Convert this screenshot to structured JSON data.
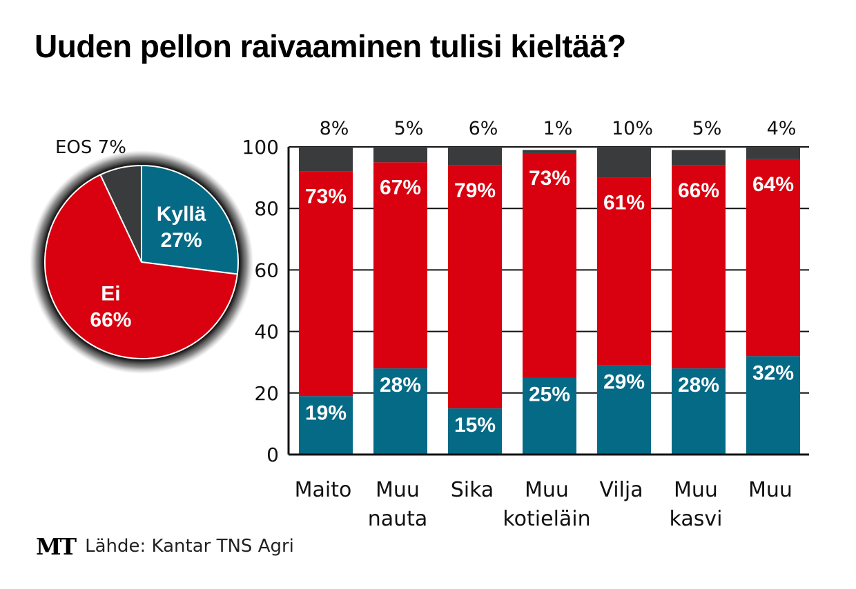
{
  "title": "Uuden pellon raivaaminen tulisi kieltää?",
  "colors": {
    "kylla": "#056a86",
    "ei": "#d9000f",
    "eos": "#3a3b3d",
    "axis": "#111111",
    "bar_label": "#ffffff"
  },
  "source": {
    "logo": "MT",
    "text": "Lähde: Kantar TNS Agri"
  },
  "chart_data": [
    {
      "type": "pie",
      "slices": [
        {
          "label": "Kyllä",
          "value": 27,
          "value_label": "27%",
          "color": "#056a86"
        },
        {
          "label": "Ei",
          "value": 66,
          "value_label": "66%",
          "color": "#d9000f"
        },
        {
          "label": "EOS",
          "value": 7,
          "value_label": "7%",
          "color": "#3a3b3d"
        }
      ],
      "outside_label": "EOS 7%"
    },
    {
      "type": "bar",
      "stacked": true,
      "categories": [
        [
          "Maito"
        ],
        [
          "Muu",
          "nauta"
        ],
        [
          "Sika"
        ],
        [
          "Muu",
          "kotieläin"
        ],
        [
          "Vilja"
        ],
        [
          "Muu",
          "kasvi"
        ],
        [
          "Muu"
        ]
      ],
      "series": [
        {
          "key": "kylla",
          "values": [
            19,
            28,
            15,
            25,
            29,
            28,
            32
          ],
          "labels": [
            "19%",
            "28%",
            "15%",
            "25%",
            "29%",
            "28%",
            "32%"
          ],
          "color": "#056a86"
        },
        {
          "key": "ei",
          "values": [
            73,
            67,
            79,
            73,
            61,
            66,
            64
          ],
          "labels": [
            "73%",
            "67%",
            "79%",
            "73%",
            "61%",
            "66%",
            "64%"
          ],
          "color": "#d9000f"
        },
        {
          "key": "eos",
          "values": [
            8,
            5,
            6,
            1,
            10,
            5,
            4
          ],
          "labels": [
            "8%",
            "5%",
            "6%",
            "1%",
            "10%",
            "5%",
            "4%"
          ],
          "color": "#3a3b3d"
        }
      ],
      "ylim": [
        0,
        100
      ],
      "yticks": [
        0,
        20,
        40,
        60,
        80,
        100
      ],
      "grid": true,
      "xlabel": "",
      "ylabel": ""
    }
  ]
}
